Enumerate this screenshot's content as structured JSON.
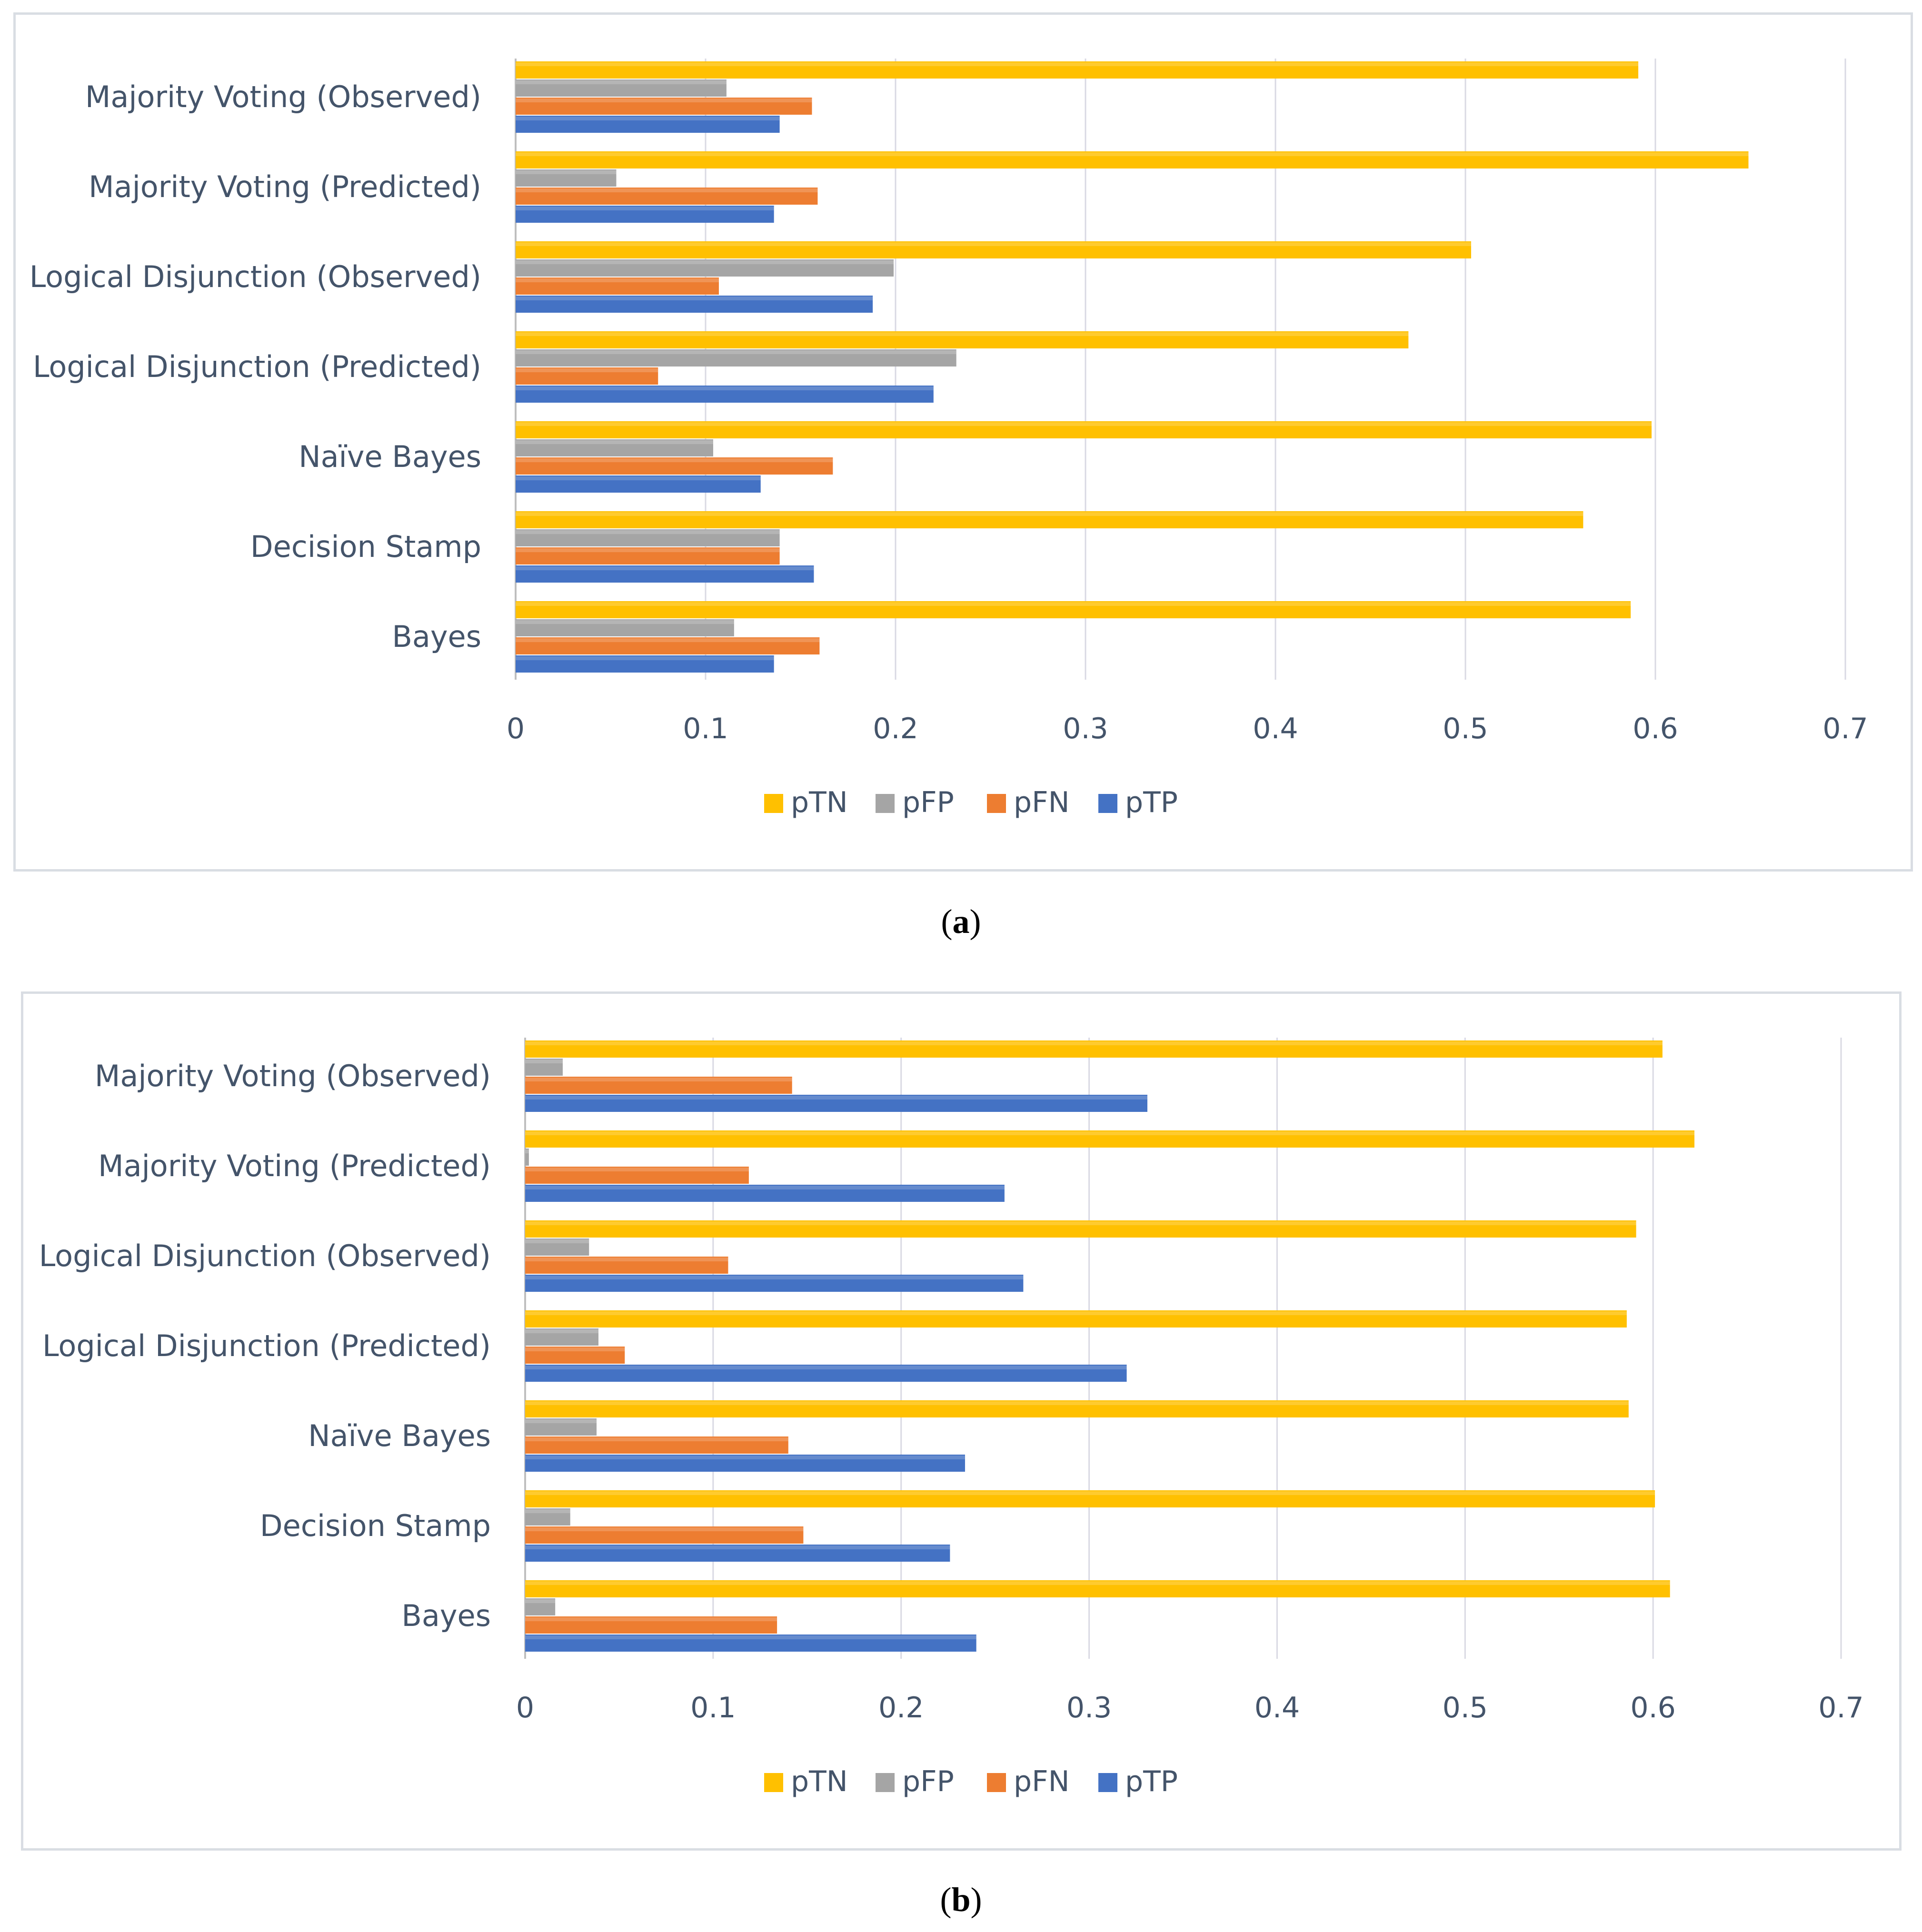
{
  "chart_data": [
    {
      "type": "bar",
      "orientation": "horizontal",
      "panel": "a",
      "categories": [
        "Majority Voting (Observed)",
        "Majority Voting (Predicted)",
        "Logical Disjunction (Observed)",
        "Logical Disjunction (Predicted)",
        "Naïve Bayes",
        "Decision Stamp",
        "Bayes"
      ],
      "series": [
        {
          "name": "pTN",
          "values": [
            0.591,
            0.649,
            0.503,
            0.47,
            0.598,
            0.562,
            0.587
          ]
        },
        {
          "name": "pFP",
          "values": [
            0.111,
            0.053,
            0.199,
            0.232,
            0.104,
            0.139,
            0.115
          ]
        },
        {
          "name": "pFN",
          "values": [
            0.156,
            0.159,
            0.107,
            0.075,
            0.167,
            0.139,
            0.16
          ]
        },
        {
          "name": "pTP",
          "values": [
            0.139,
            0.136,
            0.188,
            0.22,
            0.129,
            0.157,
            0.136
          ]
        }
      ],
      "xlim": [
        0,
        0.7
      ],
      "xticks": [
        "0",
        "0.1",
        "0.2",
        "0.3",
        "0.4",
        "0.5",
        "0.6",
        "0.7"
      ],
      "legend": [
        "pTN",
        "pFP",
        "pFN",
        "pTP"
      ],
      "legend_position": "bottom",
      "grid": true
    },
    {
      "type": "bar",
      "orientation": "horizontal",
      "panel": "b",
      "categories": [
        "Majority Voting (Observed)",
        "Majority Voting (Predicted)",
        "Logical Disjunction (Observed)",
        "Logical Disjunction (Predicted)",
        "Naïve Bayes",
        "Decision Stamp",
        "Bayes"
      ],
      "series": [
        {
          "name": "pTN",
          "values": [
            0.605,
            0.622,
            0.591,
            0.586,
            0.587,
            0.601,
            0.609
          ]
        },
        {
          "name": "pFP",
          "values": [
            0.02,
            0.002,
            0.034,
            0.039,
            0.038,
            0.024,
            0.016
          ]
        },
        {
          "name": "pFN",
          "values": [
            0.142,
            0.119,
            0.108,
            0.053,
            0.14,
            0.148,
            0.134
          ]
        },
        {
          "name": "pTP",
          "values": [
            0.331,
            0.255,
            0.265,
            0.32,
            0.234,
            0.226,
            0.24
          ]
        }
      ],
      "xlim": [
        0,
        0.7
      ],
      "xticks": [
        "0",
        "0.1",
        "0.2",
        "0.3",
        "0.4",
        "0.5",
        "0.6",
        "0.7"
      ],
      "legend": [
        "pTN",
        "pFP",
        "pFN",
        "pTP"
      ],
      "legend_position": "bottom",
      "grid": true
    }
  ],
  "colors": {
    "pTN": "#ffc000",
    "pFP": "#a5a5a5",
    "pFN": "#ed7d31",
    "pTP": "#4472c4",
    "grid": "#d9d9e3",
    "text": "#44546a"
  },
  "captions": {
    "a_open": "(",
    "a_letter": "a",
    "a_close": ")",
    "b_open": "(",
    "b_letter": "b",
    "b_close": ")"
  }
}
